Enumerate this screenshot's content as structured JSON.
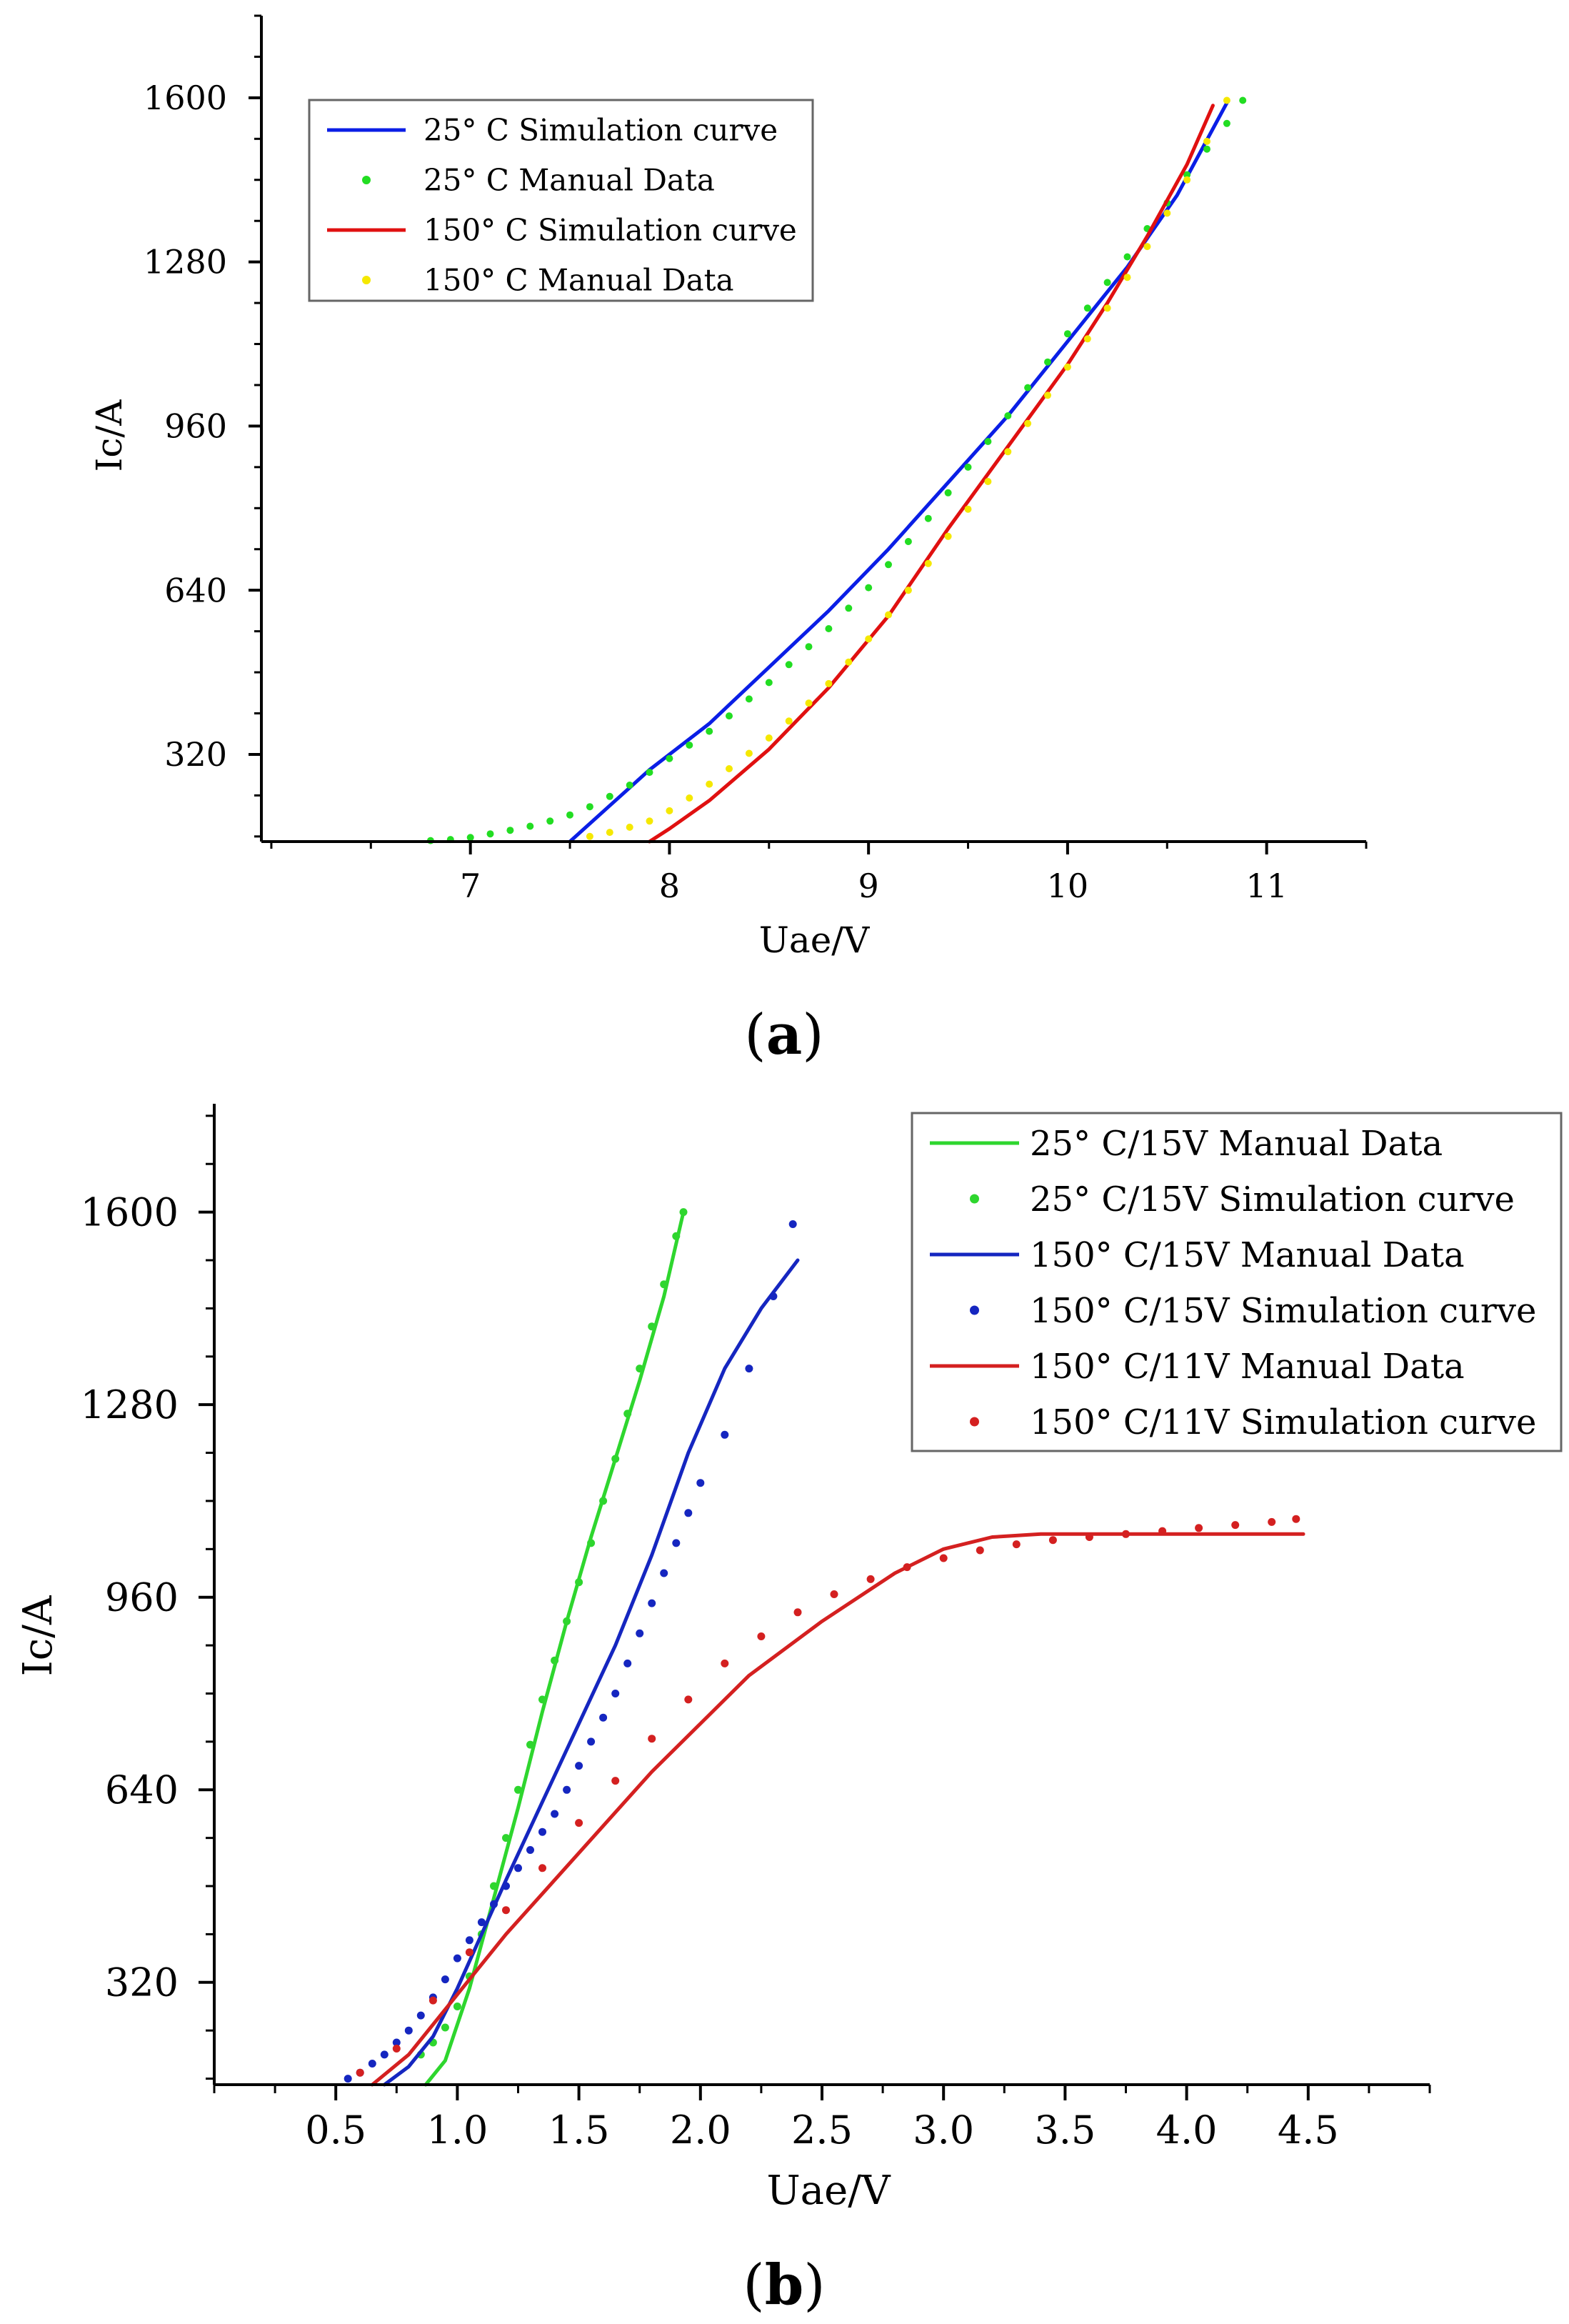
{
  "chart_data": [
    {
      "type": "line",
      "panel_label": "a",
      "xlabel": "Uae/V",
      "ylabel": "Ic/A",
      "xlim": [
        5.95,
        11.5
      ],
      "ylim": [
        150,
        1760
      ],
      "xticks": [
        7,
        8,
        9,
        10,
        11
      ],
      "yticks": [
        320,
        640,
        960,
        1280,
        1600
      ],
      "legend_position": "top-left",
      "series": [
        {
          "name": "25° C Simulation curve",
          "style": "line",
          "color": "#0a1ee6",
          "x": [
            7.5,
            7.7,
            7.9,
            8.2,
            8.5,
            8.8,
            9.1,
            9.4,
            9.7,
            10.0,
            10.3,
            10.55,
            10.8
          ],
          "y": [
            150,
            220,
            290,
            380,
            490,
            600,
            720,
            850,
            980,
            1125,
            1270,
            1410,
            1590
          ]
        },
        {
          "name": "25° C Manual Data",
          "style": "points",
          "color": "#22dd22",
          "x": [
            6.8,
            6.9,
            7.0,
            7.1,
            7.2,
            7.3,
            7.4,
            7.5,
            7.6,
            7.7,
            7.8,
            7.9,
            8.0,
            8.1,
            8.2,
            8.3,
            8.4,
            8.5,
            8.6,
            8.7,
            8.8,
            8.9,
            9.0,
            9.1,
            9.2,
            9.3,
            9.4,
            9.5,
            9.6,
            9.7,
            9.8,
            9.9,
            10.0,
            10.1,
            10.2,
            10.3,
            10.4,
            10.5,
            10.6,
            10.7,
            10.8,
            10.88
          ],
          "y": [
            152,
            154,
            158,
            165,
            172,
            180,
            190,
            202,
            218,
            238,
            260,
            285,
            312,
            338,
            365,
            395,
            428,
            460,
            495,
            530,
            565,
            605,
            645,
            690,
            735,
            780,
            830,
            880,
            930,
            980,
            1035,
            1085,
            1140,
            1190,
            1240,
            1290,
            1345,
            1395,
            1450,
            1500,
            1550,
            1595
          ]
        },
        {
          "name": "150° C Simulation curve",
          "style": "line",
          "color": "#e01010",
          "x": [
            7.9,
            8.0,
            8.2,
            8.5,
            8.8,
            9.1,
            9.4,
            9.7,
            10.0,
            10.2,
            10.4,
            10.6,
            10.73
          ],
          "y": [
            150,
            175,
            230,
            330,
            450,
            590,
            760,
            920,
            1080,
            1200,
            1330,
            1470,
            1585
          ]
        },
        {
          "name": "150° C Manual Data",
          "style": "points",
          "color": "#f5e800",
          "x": [
            7.6,
            7.7,
            7.8,
            7.9,
            8.0,
            8.1,
            8.2,
            8.3,
            8.4,
            8.5,
            8.6,
            8.7,
            8.8,
            8.9,
            9.0,
            9.1,
            9.2,
            9.3,
            9.4,
            9.5,
            9.6,
            9.7,
            9.8,
            9.9,
            10.0,
            10.1,
            10.2,
            10.3,
            10.4,
            10.5,
            10.6,
            10.7,
            10.8
          ],
          "y": [
            160,
            168,
            178,
            190,
            210,
            235,
            262,
            292,
            322,
            352,
            385,
            420,
            458,
            500,
            545,
            592,
            640,
            692,
            745,
            798,
            852,
            910,
            965,
            1020,
            1075,
            1130,
            1190,
            1250,
            1310,
            1375,
            1440,
            1515,
            1595
          ]
        }
      ]
    },
    {
      "type": "line",
      "panel_label": "b",
      "xlabel": "Uae/V",
      "ylabel": "Ic/A",
      "xlim": [
        0.0,
        5.0
      ],
      "ylim": [
        150,
        1780
      ],
      "xticks": [
        0.5,
        1.0,
        1.5,
        2.0,
        2.5,
        3.0,
        3.5,
        4.0,
        4.5
      ],
      "xtick_labels": [
        "0.5",
        "1.0",
        "1.5",
        "2.0",
        "2.5",
        "3.0",
        "3.5",
        "4.0",
        "4.5"
      ],
      "yticks": [
        320,
        640,
        960,
        1280,
        1600
      ],
      "legend_position": "top-right",
      "series": [
        {
          "name": "25° C/15V Manual Data",
          "style": "line",
          "color": "#2ed62e",
          "x": [
            0.87,
            0.95,
            1.05,
            1.15,
            1.25,
            1.35,
            1.45,
            1.55,
            1.65,
            1.75,
            1.85,
            1.93
          ],
          "y": [
            150,
            190,
            310,
            460,
            610,
            770,
            920,
            1060,
            1190,
            1320,
            1460,
            1600
          ]
        },
        {
          "name": "25° C/15V Simulation curve",
          "style": "points",
          "color": "#2ed62e",
          "x": [
            0.85,
            0.9,
            0.95,
            1.0,
            1.05,
            1.1,
            1.15,
            1.2,
            1.25,
            1.3,
            1.35,
            1.4,
            1.45,
            1.5,
            1.55,
            1.6,
            1.65,
            1.7,
            1.75,
            1.8,
            1.85,
            1.9,
            1.93
          ],
          "y": [
            200,
            220,
            245,
            280,
            330,
            400,
            480,
            560,
            640,
            715,
            790,
            855,
            920,
            985,
            1050,
            1120,
            1190,
            1265,
            1340,
            1410,
            1480,
            1560,
            1600
          ]
        },
        {
          "name": "150° C/15V Manual Data",
          "style": "line",
          "color": "#1526c0",
          "x": [
            0.7,
            0.8,
            0.9,
            1.0,
            1.1,
            1.2,
            1.35,
            1.5,
            1.65,
            1.8,
            1.95,
            2.1,
            2.25,
            2.4
          ],
          "y": [
            150,
            180,
            230,
            310,
            400,
            490,
            620,
            750,
            880,
            1030,
            1200,
            1340,
            1440,
            1520
          ]
        },
        {
          "name": "150° C/15V Simulation curve",
          "style": "points",
          "color": "#1526c0",
          "x": [
            0.55,
            0.6,
            0.65,
            0.7,
            0.75,
            0.8,
            0.85,
            0.9,
            0.95,
            1.0,
            1.05,
            1.1,
            1.15,
            1.2,
            1.25,
            1.3,
            1.35,
            1.4,
            1.45,
            1.5,
            1.55,
            1.6,
            1.65,
            1.7,
            1.75,
            1.8,
            1.85,
            1.9,
            1.95,
            2.0,
            2.1,
            2.2,
            2.3,
            2.38
          ],
          "y": [
            160,
            170,
            185,
            200,
            220,
            240,
            265,
            295,
            325,
            360,
            390,
            420,
            450,
            480,
            510,
            540,
            570,
            600,
            640,
            680,
            720,
            760,
            800,
            850,
            900,
            950,
            1000,
            1050,
            1100,
            1150,
            1230,
            1340,
            1460,
            1580
          ]
        },
        {
          "name": "150° C/11V Manual Data",
          "style": "line",
          "color": "#d42020",
          "x": [
            0.65,
            0.8,
            1.0,
            1.2,
            1.4,
            1.6,
            1.8,
            2.0,
            2.2,
            2.5,
            2.8,
            3.0,
            3.2,
            3.4,
            3.7,
            4.0,
            4.3,
            4.48
          ],
          "y": [
            150,
            200,
            300,
            400,
            490,
            580,
            670,
            750,
            830,
            920,
            1000,
            1040,
            1060,
            1065,
            1065,
            1065,
            1065,
            1065
          ]
        },
        {
          "name": "150° C/11V Simulation curve",
          "style": "points",
          "color": "#d42020",
          "x": [
            0.6,
            0.75,
            0.9,
            1.05,
            1.2,
            1.35,
            1.5,
            1.65,
            1.8,
            1.95,
            2.1,
            2.25,
            2.4,
            2.55,
            2.7,
            2.85,
            3.0,
            3.15,
            3.3,
            3.45,
            3.6,
            3.75,
            3.9,
            4.05,
            4.2,
            4.35,
            4.45
          ],
          "y": [
            170,
            210,
            290,
            370,
            440,
            510,
            585,
            655,
            725,
            790,
            850,
            895,
            935,
            965,
            990,
            1010,
            1025,
            1038,
            1048,
            1055,
            1060,
            1065,
            1070,
            1075,
            1080,
            1085,
            1090
          ]
        }
      ]
    }
  ]
}
